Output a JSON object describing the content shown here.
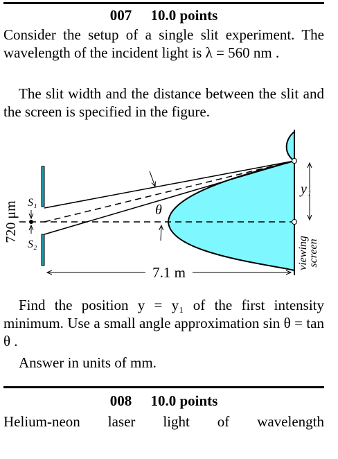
{
  "problem_007": {
    "number": "007",
    "points": "10.0 points",
    "paragraphs": [
      "Consider the setup of a single slit experiment. The wavelength of the incident light is λ = 560 nm .",
      "The slit width and the distance between the slit and the screen is specified in the figure."
    ],
    "figure": {
      "slit_top": "S₁",
      "slit_bottom": "S₂",
      "angle": "θ",
      "position": "y₁",
      "slit_width": "720 μm",
      "distance": "7.1 m",
      "screen_line1": "viewing",
      "screen_line2": "screen"
    },
    "question": "Find the position y = y₁ of the first intensity minimum. Use a small angle approximation sin θ = tan θ .",
    "answer_units": "Answer in units of  mm."
  },
  "problem_008": {
    "number": "008",
    "points": "10.0 points",
    "text": "Helium-neon laser light of wavelength"
  }
}
